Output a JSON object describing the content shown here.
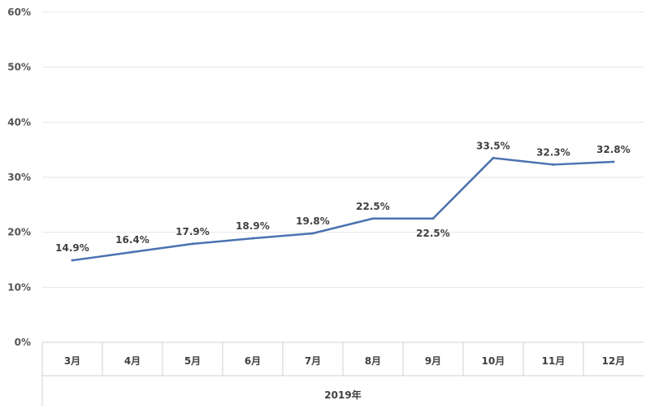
{
  "chart_data": {
    "type": "line",
    "title": "",
    "categories": [
      "3月",
      "4月",
      "5月",
      "6月",
      "7月",
      "8月",
      "9月",
      "10月",
      "11月",
      "12月"
    ],
    "group_label": "2019年",
    "series": [
      {
        "name": "",
        "values": [
          14.9,
          16.4,
          17.9,
          18.9,
          19.8,
          22.5,
          22.5,
          33.5,
          32.3,
          32.8
        ],
        "labels": [
          "14.9%",
          "16.4%",
          "17.9%",
          "18.9%",
          "19.8%",
          "22.5%",
          "22.5%",
          "33.5%",
          "32.3%",
          "32.8%"
        ],
        "label_positions": [
          "above",
          "above",
          "above",
          "above",
          "above",
          "above",
          "below",
          "above",
          "above",
          "above"
        ],
        "color": "#4a72b0"
      }
    ],
    "y_ticks": [
      "0%",
      "10%",
      "20%",
      "30%",
      "40%",
      "50%",
      "60%"
    ],
    "ylim": [
      0,
      60
    ],
    "grid": true,
    "colors": {
      "grid": "#e6e6e6",
      "axis": "#d0d0d0"
    }
  }
}
